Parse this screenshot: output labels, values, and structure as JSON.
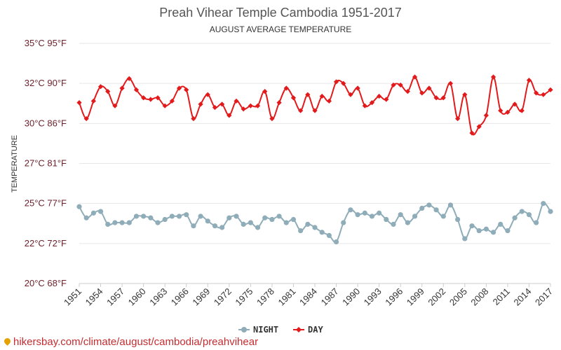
{
  "chart_data": {
    "type": "line",
    "title": "Preah Vihear Temple Cambodia 1951-2017",
    "subtitle": "AUGUST AVERAGE TEMPERATURE",
    "ylabel": "TEMPERATURE",
    "xlabel": "",
    "ylim": [
      20,
      35
    ],
    "y_ticks": [
      {
        "value": 20,
        "label": "20°C 68°F"
      },
      {
        "value": 22.5,
        "label": "22°C 72°F"
      },
      {
        "value": 25,
        "label": "25°C 77°F"
      },
      {
        "value": 27.5,
        "label": "27°C 81°F"
      },
      {
        "value": 30,
        "label": "30°C 86°F"
      },
      {
        "value": 32.5,
        "label": "32°C 90°F"
      },
      {
        "value": 35,
        "label": "35°C 95°F"
      }
    ],
    "x_tick_labels": [
      "1951",
      "1954",
      "1957",
      "1960",
      "1963",
      "1966",
      "1969",
      "1972",
      "1975",
      "1978",
      "1981",
      "1984",
      "1987",
      "1990",
      "1993",
      "1996",
      "1999",
      "2002",
      "2005",
      "2008",
      "2011",
      "2014",
      "2017"
    ],
    "x": [
      1951,
      1952,
      1953,
      1954,
      1955,
      1956,
      1957,
      1958,
      1959,
      1960,
      1961,
      1962,
      1963,
      1964,
      1965,
      1966,
      1967,
      1968,
      1969,
      1970,
      1971,
      1972,
      1973,
      1974,
      1975,
      1976,
      1977,
      1978,
      1979,
      1980,
      1981,
      1982,
      1983,
      1984,
      1985,
      1986,
      1987,
      1988,
      1989,
      1990,
      1991,
      1992,
      1993,
      1994,
      1995,
      1996,
      1997,
      1998,
      1999,
      2000,
      2001,
      2002,
      2003,
      2004,
      2005,
      2006,
      2007,
      2008,
      2009,
      2010,
      2011,
      2012,
      2013,
      2014,
      2015,
      2016,
      2017
    ],
    "series": [
      {
        "name": "NIGHT",
        "color": "#8fadb8",
        "marker": "circle",
        "values": [
          24.8,
          24.1,
          24.4,
          24.5,
          23.7,
          23.8,
          23.8,
          23.8,
          24.2,
          24.2,
          24.1,
          23.8,
          24.0,
          24.2,
          24.2,
          24.3,
          23.6,
          24.2,
          23.9,
          23.6,
          23.5,
          24.1,
          24.2,
          23.7,
          23.8,
          23.5,
          24.1,
          24.0,
          24.2,
          23.8,
          24.0,
          23.3,
          23.7,
          23.5,
          23.2,
          23.0,
          22.6,
          23.8,
          24.6,
          24.3,
          24.4,
          24.2,
          24.4,
          24.0,
          23.7,
          24.3,
          23.8,
          24.2,
          24.7,
          24.9,
          24.6,
          24.2,
          24.9,
          24.0,
          22.8,
          23.6,
          23.3,
          23.4,
          23.2,
          23.7,
          23.3,
          24.1,
          24.5,
          24.3,
          23.8,
          25.0,
          24.5
        ]
      },
      {
        "name": "DAY",
        "color": "#e31a1c",
        "marker": "diamond",
        "values": [
          31.3,
          30.3,
          31.4,
          32.3,
          32.0,
          31.1,
          32.2,
          32.8,
          32.1,
          31.6,
          31.5,
          31.6,
          31.1,
          31.4,
          32.2,
          32.1,
          30.3,
          31.2,
          31.8,
          31.0,
          31.2,
          30.5,
          31.4,
          30.9,
          31.1,
          31.1,
          32.0,
          30.3,
          31.3,
          32.2,
          31.6,
          30.8,
          31.8,
          30.8,
          31.7,
          31.4,
          32.6,
          32.5,
          31.8,
          32.2,
          31.1,
          31.3,
          31.7,
          31.5,
          32.4,
          32.4,
          32.0,
          32.9,
          31.9,
          32.2,
          31.6,
          31.6,
          32.5,
          30.3,
          31.8,
          29.4,
          29.8,
          30.5,
          32.9,
          30.8,
          30.7,
          31.2,
          30.8,
          32.7,
          31.9,
          31.8,
          32.1
        ]
      }
    ],
    "grid": true,
    "legend": "bottom-center"
  },
  "watermark": "hikersbay.com/climate/august/cambodia/preahvihear"
}
